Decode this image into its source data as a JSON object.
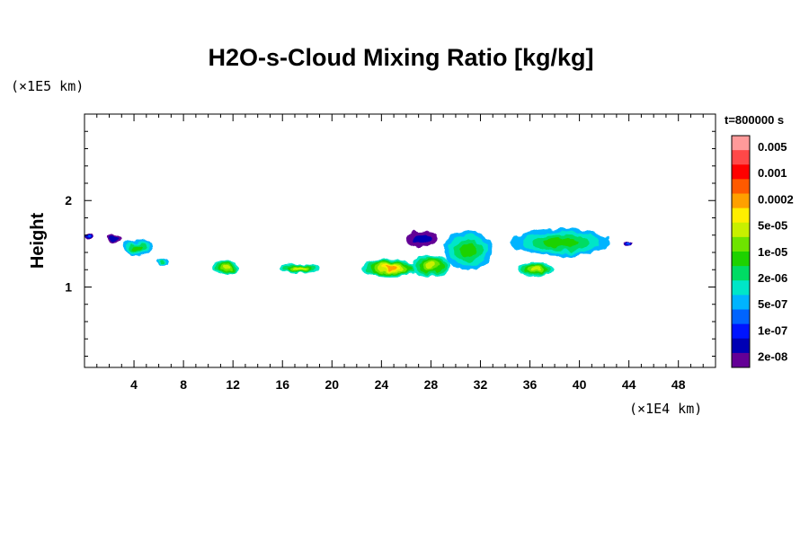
{
  "chart_data": {
    "type": "heatmap",
    "title": "H2O-s-Cloud Mixing Ratio [kg/kg]",
    "xlabel": "",
    "ylabel": "Height",
    "x_multiplier": "(×1E4 km)",
    "y_multiplier": "(×1E5 km)",
    "time_label": "t=800000 s",
    "xlim": [
      0,
      51
    ],
    "ylim": [
      0.07,
      3.0
    ],
    "x_ticks": [
      "4",
      "8",
      "12",
      "16",
      "20",
      "24",
      "28",
      "32",
      "36",
      "40",
      "44",
      "48"
    ],
    "y_ticks": [
      "1",
      "2"
    ],
    "colorbar": {
      "labels": [
        "0.005",
        "0.001",
        "0.0002",
        "5e-05",
        "1e-05",
        "2e-06",
        "5e-07",
        "1e-07",
        "2e-08"
      ],
      "colors": [
        "#ff9a9a",
        "#ff4848",
        "#ff0000",
        "#ff5a00",
        "#ffa000",
        "#ffee00",
        "#c8f000",
        "#6ee400",
        "#1ed200",
        "#00dc64",
        "#00e6c8",
        "#00b4ff",
        "#0064ff",
        "#0014ff",
        "#0000b4",
        "#640096"
      ]
    },
    "cloud_regions": [
      {
        "x": [
          0,
          0.6
        ],
        "y": [
          1.55,
          1.62
        ],
        "max_level": "1e-07"
      },
      {
        "x": [
          1.8,
          3
        ],
        "y": [
          1.5,
          1.62
        ],
        "max_level": "2e-08"
      },
      {
        "x": [
          3,
          5.5
        ],
        "y": [
          1.35,
          1.55
        ],
        "max_level": "1e-05"
      },
      {
        "x": [
          5.8,
          6.8
        ],
        "y": [
          1.25,
          1.33
        ],
        "max_level": "2e-06"
      },
      {
        "x": [
          10.4,
          12.5
        ],
        "y": [
          1.15,
          1.3
        ],
        "max_level": "5e-05"
      },
      {
        "x": [
          15.8,
          19
        ],
        "y": [
          1.15,
          1.28
        ],
        "max_level": "5e-05"
      },
      {
        "x": [
          22.5,
          27
        ],
        "y": [
          1.12,
          1.32
        ],
        "max_level": "0.0002"
      },
      {
        "x": [
          26.5,
          29.5
        ],
        "y": [
          1.12,
          1.38
        ],
        "max_level": "5e-05"
      },
      {
        "x": [
          29,
          33
        ],
        "y": [
          1.2,
          1.65
        ],
        "max_level": "1e-05"
      },
      {
        "x": [
          26,
          28.5
        ],
        "y": [
          1.45,
          1.65
        ],
        "max_level": "2e-08"
      },
      {
        "x": [
          34.5,
          42.5
        ],
        "y": [
          1.35,
          1.68
        ],
        "max_level": "1e-05"
      },
      {
        "x": [
          35,
          38
        ],
        "y": [
          1.12,
          1.3
        ],
        "max_level": "5e-05"
      },
      {
        "x": [
          43.6,
          44.3
        ],
        "y": [
          1.48,
          1.52
        ],
        "max_level": "1e-07"
      }
    ]
  }
}
